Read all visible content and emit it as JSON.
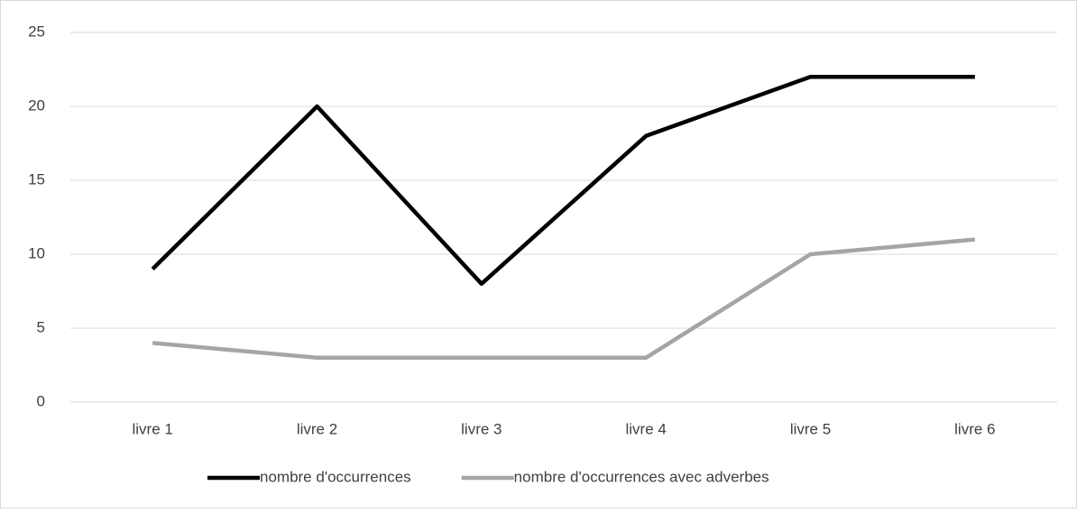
{
  "chart_data": {
    "type": "line",
    "categories": [
      "livre 1",
      "livre 2",
      "livre 3",
      "livre 4",
      "livre 5",
      "livre 6"
    ],
    "series": [
      {
        "name": "nombre d'occurrences",
        "color": "#000000",
        "values": [
          9,
          20,
          8,
          18,
          22,
          22
        ]
      },
      {
        "name": "nombre d'occurrences avec adverbes",
        "color": "#a5a5a5",
        "values": [
          4,
          3,
          3,
          3,
          10,
          11
        ]
      }
    ],
    "ylim": [
      0,
      25
    ],
    "yticks": [
      0,
      5,
      10,
      15,
      20,
      25
    ],
    "grid": true,
    "legend": "bottom"
  }
}
